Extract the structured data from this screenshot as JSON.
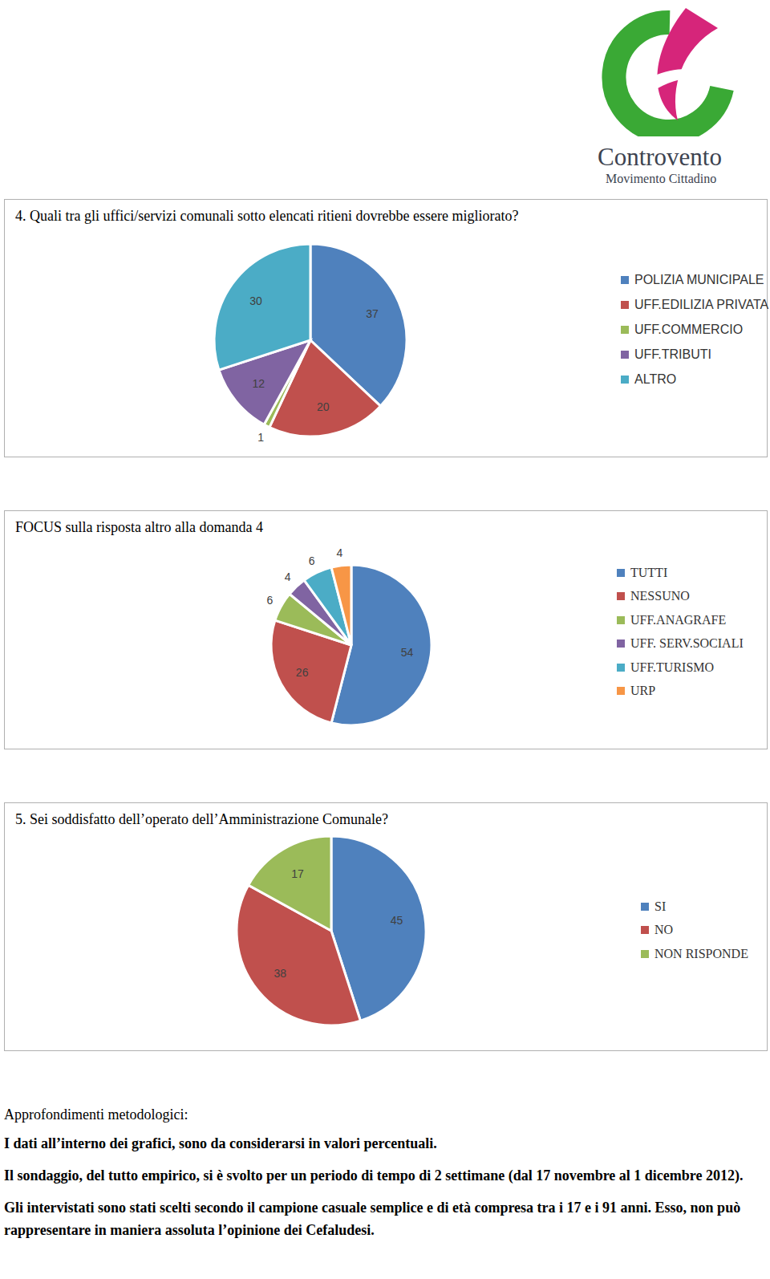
{
  "logo": {
    "name": "Controvento",
    "subtitle": "Movimento Cittadino"
  },
  "chart_data": [
    {
      "type": "pie",
      "title": "4. Quali tra gli uffici/servizi comunali sotto elencati ritieni dovrebbe essere migliorato?",
      "categories": [
        "POLIZIA MUNICIPALE",
        "UFF.EDILIZIA PRIVATA",
        "UFF.COMMERCIO",
        "UFF.TRIBUTI",
        "ALTRO"
      ],
      "values": [
        37,
        20,
        1,
        12,
        30
      ],
      "colors": [
        "#4f81bd",
        "#c0504d",
        "#9bbb59",
        "#8064a2",
        "#4bacc6"
      ],
      "data_labels": true,
      "legend": "right"
    },
    {
      "type": "pie",
      "title": "FOCUS sulla risposta altro alla domanda 4",
      "categories": [
        "TUTTI",
        "NESSUNO",
        "UFF.ANAGRAFE",
        "UFF. SERV.SOCIALI",
        "UFF.TURISMO",
        "URP"
      ],
      "values": [
        54,
        26,
        6,
        4,
        6,
        4
      ],
      "colors": [
        "#4f81bd",
        "#c0504d",
        "#9bbb59",
        "#8064a2",
        "#4bacc6",
        "#f79646"
      ],
      "data_labels": true,
      "legend": "right"
    },
    {
      "type": "pie",
      "title": "5. Sei soddisfatto dell’operato dell’Amministrazione Comunale?",
      "categories": [
        "SI",
        "NO",
        "NON RISPONDE"
      ],
      "values": [
        45,
        38,
        17
      ],
      "colors": [
        "#4f81bd",
        "#c0504d",
        "#9bbb59"
      ],
      "data_labels": true,
      "legend": "right"
    }
  ],
  "notes": {
    "heading": "Approfondimenti metodologici:",
    "paragraphs": [
      "I dati all’interno dei grafici, sono da considerarsi in valori percentuali.",
      "Il sondaggio, del tutto empirico, si è svolto per un periodo di tempo di 2 settimane (dal 17 novembre al 1 dicembre 2012).",
      "Gli intervistati sono stati scelti secondo il campione casuale semplice e di età compresa tra i 17 e i 91 anni. Esso, non può rappresentare in maniera assoluta l’opinione dei Cefaludesi."
    ]
  }
}
